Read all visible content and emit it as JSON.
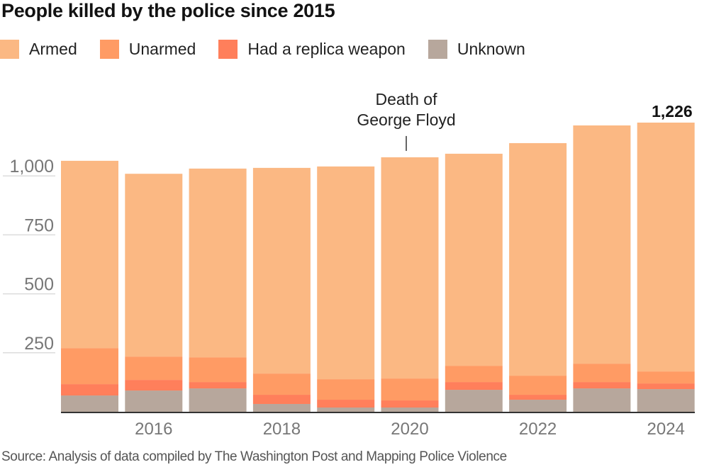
{
  "chart_data": {
    "type": "bar",
    "stacked": true,
    "title": "People killed by the police since 2015",
    "xlabel": "",
    "ylabel": "",
    "ylim": [
      0,
      1250
    ],
    "yticks": [
      250,
      500,
      750,
      1000
    ],
    "ytick_labels": [
      "250",
      "500",
      "750",
      "1,000"
    ],
    "grid": true,
    "legend_position": "top-left",
    "categories": [
      "2015",
      "2016",
      "2017",
      "2018",
      "2019",
      "2020",
      "2021",
      "2022",
      "2023",
      "2024"
    ],
    "xtick_labels": {
      "2016": "2016",
      "2018": "2018",
      "2020": "2020",
      "2022": "2022",
      "2024": "2024"
    },
    "series": [
      {
        "name": "Unknown",
        "color": "#b7a79c",
        "values": [
          69,
          90,
          99,
          33,
          18,
          18,
          93,
          51,
          99,
          96
        ]
      },
      {
        "name": "Had a replica weapon",
        "color": "#ff7f5b",
        "values": [
          48,
          45,
          27,
          39,
          33,
          30,
          33,
          21,
          27,
          24
        ]
      },
      {
        "name": "Unarmed",
        "color": "#ff9b64",
        "values": [
          153,
          99,
          105,
          90,
          87,
          93,
          69,
          81,
          78,
          51
        ]
      },
      {
        "name": "Armed",
        "color": "#fbb883",
        "values": [
          794,
          775,
          800,
          872,
          902,
          938,
          899,
          986,
          1010,
          1055
        ]
      }
    ],
    "data_labels": [
      {
        "category": "2024",
        "text": "1,226"
      }
    ],
    "annotations": [
      {
        "category": "2020",
        "text_line1": "Death of",
        "text_line2": "George Floyd"
      }
    ]
  },
  "legend": [
    {
      "label": "Armed",
      "color": "#fbb883"
    },
    {
      "label": "Unarmed",
      "color": "#ff9b64"
    },
    {
      "label": "Had a replica weapon",
      "color": "#ff7f5b"
    },
    {
      "label": "Unknown",
      "color": "#b7a79c"
    }
  ],
  "source": "Source: Analysis of data compiled by The Washington Post and Mapping Police Violence"
}
